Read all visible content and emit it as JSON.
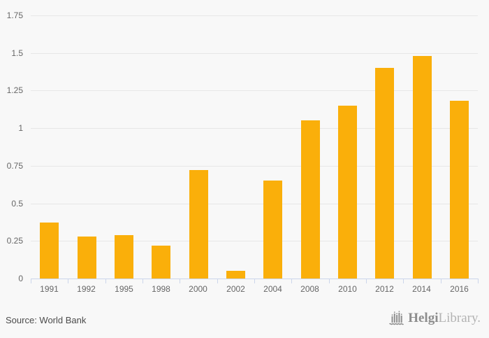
{
  "chart_data": {
    "type": "bar",
    "title": "",
    "xlabel": "",
    "ylabel": "",
    "categories": [
      "1991",
      "1992",
      "1995",
      "1998",
      "2000",
      "2002",
      "2004",
      "2008",
      "2010",
      "2012",
      "2014",
      "2016"
    ],
    "values": [
      0.37,
      0.28,
      0.29,
      0.22,
      0.72,
      0.05,
      0.65,
      1.05,
      1.15,
      1.4,
      1.48,
      1.18
    ],
    "ylim": [
      0,
      1.75
    ],
    "yticks": [
      "0",
      "0.25",
      "0.5",
      "0.75",
      "1",
      "1.25",
      "1.5",
      "1.75"
    ],
    "grid": true,
    "legend": "none",
    "bar_color": "#faaf0a"
  },
  "colors": {
    "background": "#f8f8f8",
    "bar": "#faaf0a",
    "gridline": "#e7e7e7",
    "axis_line": "#ccd6eb",
    "tick_label": "#666666",
    "source_text": "#4b4b4b",
    "logo_dark": "#8d8d8d",
    "logo_light": "#b3b3b3"
  },
  "footer": {
    "source": "Source: World Bank",
    "logo_bold": "Helgi",
    "logo_light": "Library."
  }
}
